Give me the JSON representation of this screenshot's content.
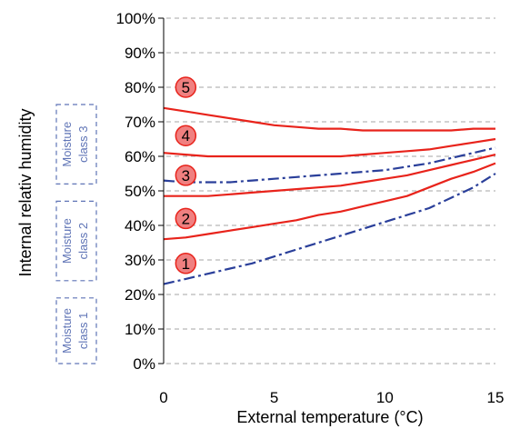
{
  "chart_data": {
    "type": "line",
    "title": "",
    "xlabel": "External temperature (°C)",
    "ylabel": "Internal relativ humidity",
    "xlim": [
      0,
      15
    ],
    "ylim": [
      0,
      100
    ],
    "x_ticks": [
      0,
      5,
      10,
      15
    ],
    "x_tick_labels": [
      "0",
      "5",
      "10",
      "15"
    ],
    "y_ticks": [
      0,
      10,
      20,
      30,
      40,
      50,
      60,
      70,
      80,
      90,
      100
    ],
    "y_tick_labels": [
      "0%",
      "10%",
      "20%",
      "30%",
      "40%",
      "50%",
      "60%",
      "70%",
      "80%",
      "90%",
      "100%"
    ],
    "grid": "horizontal dashed",
    "colors": {
      "solid": "#e8231b",
      "dashed": "#2a3f9a",
      "marker_fill": "#f08080",
      "class_box": "#5f74b6",
      "grid": "#a6a6a6"
    },
    "series": [
      {
        "style": "solid",
        "x": [
          0,
          1,
          2,
          3,
          4,
          5,
          6,
          7,
          8,
          9,
          10,
          11,
          12,
          13,
          14,
          15
        ],
        "y": [
          74,
          73,
          72,
          71,
          70,
          69,
          68.5,
          68,
          68,
          67.5,
          67.5,
          67.5,
          67.5,
          67.5,
          68,
          68
        ]
      },
      {
        "style": "solid",
        "x": [
          0,
          1,
          2,
          3,
          4,
          5,
          6,
          7,
          8,
          9,
          10,
          11,
          12,
          13,
          14,
          15
        ],
        "y": [
          61,
          60.5,
          60,
          60,
          60,
          60,
          60,
          60,
          60,
          60.5,
          61,
          61.5,
          62,
          63,
          64,
          65
        ]
      },
      {
        "style": "solid",
        "x": [
          0,
          1,
          2,
          3,
          4,
          5,
          6,
          7,
          8,
          9,
          10,
          11,
          12,
          13,
          14,
          15
        ],
        "y": [
          48.5,
          48.5,
          48.5,
          49,
          49.5,
          50,
          50.5,
          51,
          51.5,
          52.5,
          53.5,
          54.5,
          56,
          57.5,
          59,
          60.5
        ]
      },
      {
        "style": "solid",
        "x": [
          0,
          1,
          2,
          3,
          4,
          5,
          6,
          7,
          8,
          9,
          10,
          11,
          12,
          13,
          14,
          15
        ],
        "y": [
          36,
          36.5,
          37.5,
          38.5,
          39.5,
          40.5,
          41.5,
          43,
          44,
          45.5,
          47,
          48.5,
          51,
          53.5,
          55.5,
          58
        ]
      },
      {
        "style": "dashed",
        "x": [
          0,
          1,
          2,
          3,
          4,
          5,
          6,
          7,
          8,
          9,
          10,
          11,
          12,
          13,
          14,
          15
        ],
        "y": [
          53,
          52.5,
          52.5,
          52.5,
          53,
          53.5,
          54,
          54.5,
          55,
          55.5,
          56,
          57,
          58,
          59.5,
          61,
          62.5
        ]
      },
      {
        "style": "dashed",
        "x": [
          0,
          1,
          2,
          3,
          4,
          5,
          6,
          7,
          8,
          9,
          10,
          11,
          12,
          13,
          14,
          15
        ],
        "y": [
          23,
          24.5,
          26,
          27.5,
          29,
          31,
          33,
          35,
          37,
          39,
          41,
          43,
          45,
          48,
          51,
          55
        ]
      }
    ],
    "markers": [
      {
        "label": "1",
        "x": 1,
        "y": 29
      },
      {
        "label": "2",
        "x": 1,
        "y": 42
      },
      {
        "label": "3",
        "x": 1,
        "y": 54.5
      },
      {
        "label": "4",
        "x": 1,
        "y": 66
      },
      {
        "label": "5",
        "x": 1,
        "y": 80
      }
    ],
    "moisture_classes": [
      {
        "line1": "Moisture",
        "line2": "class 1",
        "y_from": 0,
        "y_to": 19
      },
      {
        "line1": "Moisture",
        "line2": "class 2",
        "y_from": 24,
        "y_to": 47
      },
      {
        "line1": "Moisture",
        "line2": "class 3",
        "y_from": 52,
        "y_to": 75
      }
    ]
  }
}
